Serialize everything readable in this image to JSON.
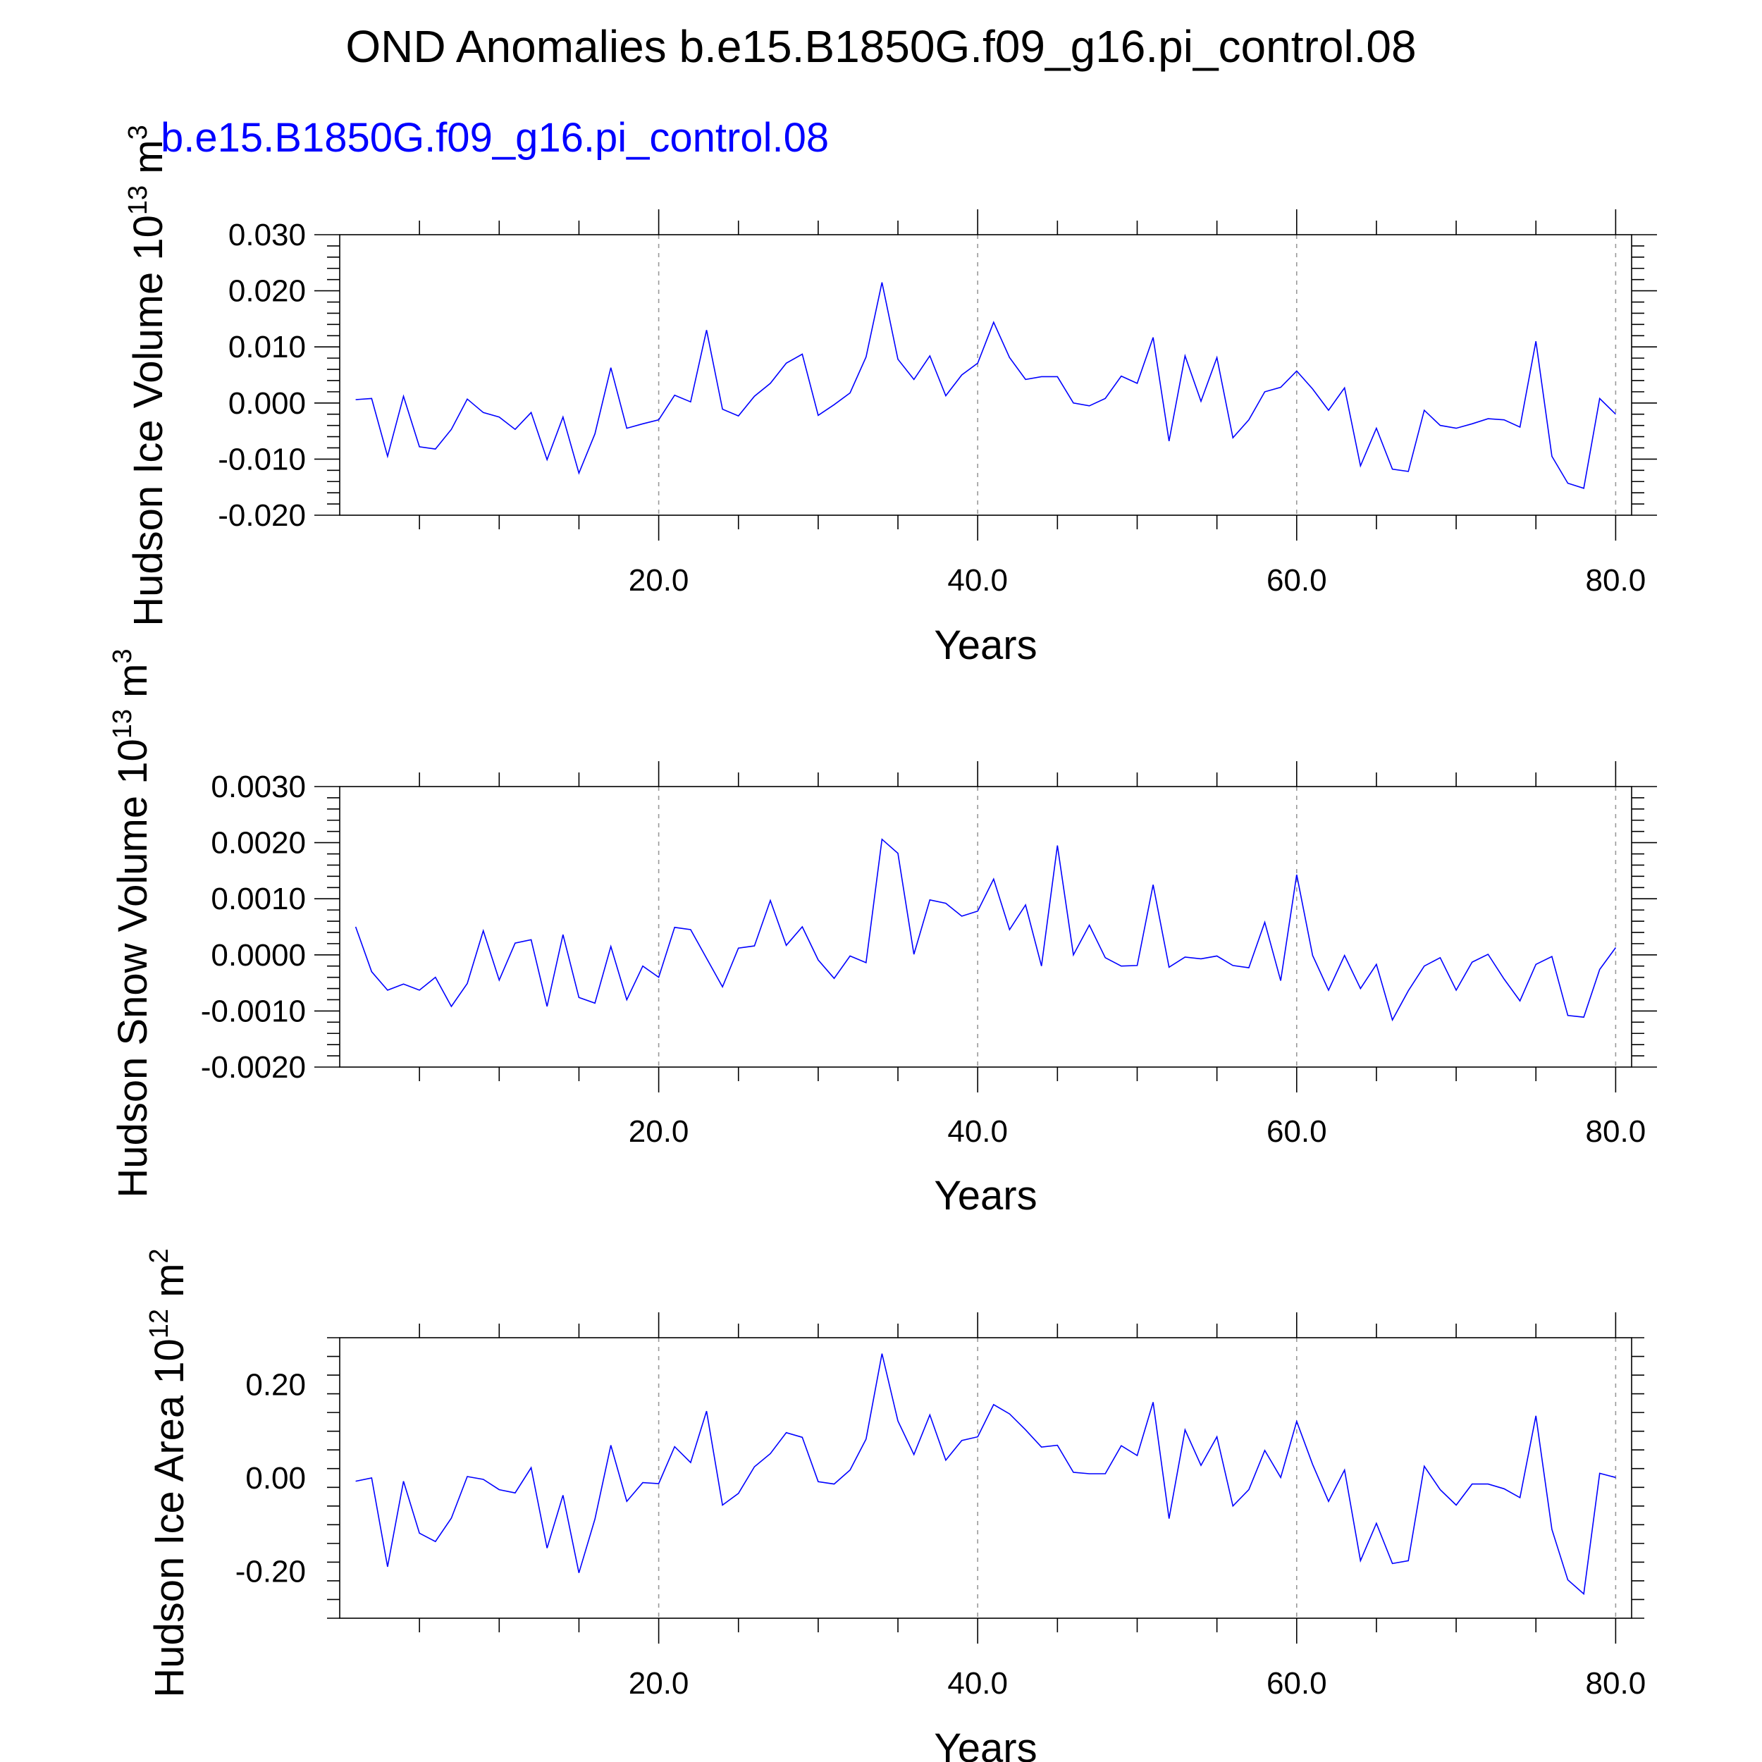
{
  "title": "OND Anomalies b.e15.B1850G.f09_g16.pi_control.08",
  "case_label": "b.e15.B1850G.f09_g16.pi_control.08",
  "line_color": "#0000ff",
  "chart_data": [
    {
      "type": "line",
      "ylabel": {
        "text": "Hudson Ice Volume 10",
        "exp": "13",
        "unit": " m",
        "unit_exp": "3"
      },
      "xlabel": "Years",
      "xlim": [
        0,
        81
      ],
      "ylim": [
        -0.02,
        0.03
      ],
      "yticks": [
        -0.02,
        -0.01,
        0.0,
        0.01,
        0.02,
        0.03
      ],
      "ytick_labels": [
        "-0.020",
        "-0.010",
        "0.000",
        "0.010",
        "0.020",
        "0.030"
      ],
      "xticks": [
        20,
        40,
        60,
        80
      ],
      "xtick_labels": [
        "20.0",
        "40.0",
        "60.0",
        "80.0"
      ],
      "grid_x": true,
      "series": [
        {
          "x": [
            1,
            2,
            3,
            4,
            5,
            6,
            7,
            8,
            9,
            10,
            11,
            12,
            13,
            14,
            15,
            16,
            17,
            18,
            19,
            20,
            21,
            22,
            23,
            24,
            25,
            26,
            27,
            28,
            29,
            30,
            31,
            32,
            33,
            34,
            35,
            36,
            37,
            38,
            39,
            40,
            41,
            42,
            43,
            44,
            45,
            46,
            47,
            48,
            49,
            50,
            51,
            52,
            53,
            54,
            55,
            56,
            57,
            58,
            59,
            60,
            61,
            62,
            63,
            64,
            65,
            66,
            67,
            68,
            69,
            70,
            71,
            72,
            73,
            74,
            75,
            76,
            77,
            78,
            79,
            80
          ],
          "values": [
            0.0006,
            0.0008,
            -0.0095,
            0.0012,
            -0.0078,
            -0.0082,
            -0.0047,
            0.0007,
            -0.0017,
            -0.0025,
            -0.0047,
            -0.0017,
            -0.0101,
            -0.0025,
            -0.0125,
            -0.0055,
            0.0063,
            -0.0045,
            -0.0037,
            -0.003,
            0.0014,
            0.0002,
            0.013,
            -0.0011,
            -0.0023,
            0.0012,
            0.0035,
            0.0071,
            0.0087,
            -0.0022,
            -0.0003,
            0.0018,
            0.0082,
            0.0215,
            0.0078,
            0.0042,
            0.0084,
            0.0013,
            0.005,
            0.0071,
            0.0144,
            0.0081,
            0.0042,
            0.0047,
            0.0047,
            0.0,
            -0.0005,
            0.0008,
            0.0048,
            0.0035,
            0.0117,
            -0.0068,
            0.0084,
            0.0003,
            0.0081,
            -0.0062,
            -0.003,
            0.002,
            0.0028,
            0.0057,
            0.0025,
            -0.0013,
            0.0027,
            -0.0112,
            -0.0045,
            -0.0118,
            -0.0122,
            -0.0013,
            -0.004,
            -0.0045,
            -0.0037,
            -0.0028,
            -0.003,
            -0.0043,
            0.011,
            -0.0095,
            -0.0143,
            -0.0152,
            0.0008,
            -0.002
          ]
        }
      ]
    },
    {
      "type": "line",
      "ylabel": {
        "text": "Hudson Snow Volume 10",
        "exp": "13",
        "unit": " m",
        "unit_exp": "3"
      },
      "xlabel": "Years",
      "xlim": [
        0,
        81
      ],
      "ylim": [
        -0.002,
        0.003
      ],
      "yticks": [
        -0.002,
        -0.001,
        0.0,
        0.001,
        0.002,
        0.003
      ],
      "ytick_labels": [
        "-0.0020",
        "-0.0010",
        "0.0000",
        "0.0010",
        "0.0020",
        "0.0030"
      ],
      "xticks": [
        20,
        40,
        60,
        80
      ],
      "xtick_labels": [
        "20.0",
        "40.0",
        "60.0",
        "80.0"
      ],
      "grid_x": true,
      "series": [
        {
          "x": [
            1,
            2,
            3,
            4,
            5,
            6,
            7,
            8,
            9,
            10,
            11,
            12,
            13,
            14,
            15,
            16,
            17,
            18,
            19,
            20,
            21,
            22,
            23,
            24,
            25,
            26,
            27,
            28,
            29,
            30,
            31,
            32,
            33,
            34,
            35,
            36,
            37,
            38,
            39,
            40,
            41,
            42,
            43,
            44,
            45,
            46,
            47,
            48,
            49,
            50,
            51,
            52,
            53,
            54,
            55,
            56,
            57,
            58,
            59,
            60,
            61,
            62,
            63,
            64,
            65,
            66,
            67,
            68,
            69,
            70,
            71,
            72,
            73,
            74,
            75,
            76,
            77,
            78,
            79,
            80
          ],
          "values": [
            0.0005,
            -0.0003,
            -0.00063,
            -0.00052,
            -0.00063,
            -0.0004,
            -0.00092,
            -0.00051,
            0.00043,
            -0.00045,
            0.00021,
            0.00027,
            -0.00092,
            0.00036,
            -0.00076,
            -0.00086,
            0.00015,
            -0.0008,
            -0.0002,
            -0.0004,
            0.00049,
            0.00045,
            -6e-05,
            -0.00057,
            0.00012,
            0.00016,
            0.00097,
            0.00017,
            0.0005,
            -9e-05,
            -0.00042,
            -2e-05,
            -0.00014,
            0.00206,
            0.00181,
            1e-05,
            0.00098,
            0.00092,
            0.00069,
            0.00078,
            0.00135,
            0.00045,
            0.00089,
            -0.0002,
            0.00195,
            0.0,
            0.00053,
            -5e-05,
            -0.0002,
            -0.00019,
            0.00125,
            -0.00022,
            -4e-05,
            -7e-05,
            -2e-05,
            -0.00019,
            -0.00023,
            0.00058,
            -0.00046,
            0.00143,
            -1e-05,
            -0.00063,
            -1e-05,
            -0.0006,
            -0.00017,
            -0.00116,
            -0.00064,
            -0.0002,
            -5e-05,
            -0.00063,
            -0.00013,
            1e-05,
            -0.00043,
            -0.00082,
            -0.00017,
            -3e-05,
            -0.00108,
            -0.00111,
            -0.00026,
            0.00013
          ]
        }
      ]
    },
    {
      "type": "line",
      "ylabel": {
        "text": "Hudson Ice Area 10",
        "exp": "12",
        "unit": " m",
        "unit_exp": "2"
      },
      "xlabel": "Years",
      "xlim": [
        0,
        81
      ],
      "ylim": [
        -0.3,
        0.3
      ],
      "yticks": [
        -0.2,
        0.0,
        0.2
      ],
      "ytick_labels": [
        "-0.20",
        "0.00",
        "0.20"
      ],
      "xticks": [
        20,
        40,
        60,
        80
      ],
      "xtick_labels": [
        "20.0",
        "40.0",
        "60.0",
        "80.0"
      ],
      "grid_x": true,
      "series": [
        {
          "x": [
            1,
            2,
            3,
            4,
            5,
            6,
            7,
            8,
            9,
            10,
            11,
            12,
            13,
            14,
            15,
            16,
            17,
            18,
            19,
            20,
            21,
            22,
            23,
            24,
            25,
            26,
            27,
            28,
            29,
            30,
            31,
            32,
            33,
            34,
            35,
            36,
            37,
            38,
            39,
            40,
            41,
            42,
            43,
            44,
            45,
            46,
            47,
            48,
            49,
            50,
            51,
            52,
            53,
            54,
            55,
            56,
            57,
            58,
            59,
            60,
            61,
            62,
            63,
            64,
            65,
            66,
            67,
            68,
            69,
            70,
            71,
            72,
            73,
            74,
            75,
            76,
            77,
            78,
            79,
            80
          ],
          "values": [
            -0.007,
            0.0,
            -0.19,
            -0.007,
            -0.118,
            -0.136,
            -0.086,
            0.003,
            -0.003,
            -0.025,
            -0.032,
            0.022,
            -0.15,
            -0.037,
            -0.203,
            -0.088,
            0.07,
            -0.05,
            -0.01,
            -0.012,
            0.067,
            0.033,
            0.143,
            -0.058,
            -0.033,
            0.024,
            0.052,
            0.097,
            0.087,
            -0.008,
            -0.013,
            0.017,
            0.083,
            0.266,
            0.122,
            0.05,
            0.135,
            0.038,
            0.08,
            0.088,
            0.157,
            0.137,
            0.103,
            0.066,
            0.07,
            0.012,
            0.009,
            0.009,
            0.069,
            0.048,
            0.162,
            -0.087,
            0.103,
            0.027,
            0.088,
            -0.06,
            -0.025,
            0.059,
            0.001,
            0.121,
            0.029,
            -0.05,
            0.017,
            -0.177,
            -0.097,
            -0.183,
            -0.177,
            0.025,
            -0.025,
            -0.058,
            -0.013,
            -0.013,
            -0.023,
            -0.042,
            0.133,
            -0.11,
            -0.218,
            -0.248,
            0.01,
            0.001
          ]
        }
      ]
    }
  ]
}
